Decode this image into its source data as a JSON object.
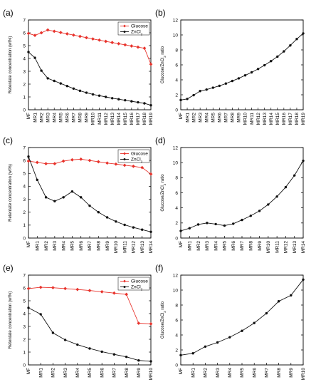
{
  "chart_data": [
    {
      "panel": "(a)",
      "type": "line",
      "ylabel": "Retentate concentration (wt%)",
      "xlabel": "",
      "categories": [
        "MF",
        "MR1",
        "MR2",
        "MR3",
        "MR4",
        "MR5",
        "MR6",
        "MR7",
        "MR8",
        "MR9",
        "MR10",
        "MR11",
        "MR12",
        "MR13",
        "MR14",
        "MR15",
        "MR16",
        "MR17",
        "MR18",
        "MR19"
      ],
      "ylim": [
        0,
        7
      ],
      "yticks": [
        0,
        1,
        2,
        3,
        4,
        5,
        6,
        7
      ],
      "legend": "top-right",
      "series": [
        {
          "name": "Glucose",
          "sub": "",
          "color": "#e8322b",
          "marker": "diamond",
          "values": [
            5.95,
            5.8,
            6.0,
            6.22,
            6.12,
            6.02,
            5.92,
            5.82,
            5.72,
            5.62,
            5.52,
            5.43,
            5.33,
            5.24,
            5.15,
            5.06,
            4.97,
            4.88,
            4.8,
            3.55
          ]
        },
        {
          "name": "ZnCl",
          "sub": "2",
          "color": "#111111",
          "marker": "circle",
          "values": [
            4.5,
            4.05,
            3.05,
            2.45,
            2.25,
            2.05,
            1.85,
            1.65,
            1.48,
            1.33,
            1.2,
            1.1,
            1.0,
            0.9,
            0.82,
            0.74,
            0.66,
            0.58,
            0.5,
            0.35
          ]
        }
      ]
    },
    {
      "panel": "(b)",
      "type": "line",
      "ylabel": "Glucose/ZnCl2 ratio",
      "categories": [
        "MF",
        "MR1",
        "MR2",
        "MR3",
        "MR4",
        "MR5",
        "MR6",
        "MR7",
        "MR8",
        "MR9",
        "MR10",
        "MR11",
        "MR12",
        "MR13",
        "MR14",
        "MR15",
        "MR16",
        "MR17",
        "MR18",
        "MR19"
      ],
      "ylim": [
        0,
        12
      ],
      "yticks": [
        0,
        2,
        4,
        6,
        8,
        10,
        12
      ],
      "series": [
        {
          "name": "",
          "color": "#111111",
          "marker": "circle",
          "values": [
            1.3,
            1.45,
            1.95,
            2.5,
            2.7,
            2.95,
            3.2,
            3.5,
            3.85,
            4.2,
            4.6,
            5.0,
            5.45,
            5.95,
            6.5,
            7.1,
            7.8,
            8.6,
            9.45,
            10.2
          ]
        }
      ]
    },
    {
      "panel": "(c)",
      "type": "line",
      "ylabel": "Retentate concentration (wt%)",
      "categories": [
        "MF",
        "MR1",
        "MR2",
        "MR3",
        "MR4",
        "MR5",
        "MR6",
        "MR7",
        "MR8",
        "MR9",
        "MR10",
        "MR11",
        "MR12",
        "MR13",
        "MR14"
      ],
      "ylim": [
        0,
        7
      ],
      "yticks": [
        0,
        1,
        2,
        3,
        4,
        5,
        6,
        7
      ],
      "legend": "top-right",
      "series": [
        {
          "name": "Glucose",
          "sub": "",
          "color": "#e8322b",
          "marker": "diamond",
          "values": [
            5.95,
            5.85,
            5.75,
            5.75,
            5.95,
            6.05,
            6.1,
            6.0,
            5.9,
            5.8,
            5.72,
            5.63,
            5.55,
            5.45,
            4.95
          ]
        },
        {
          "name": "ZnCl",
          "sub": "2",
          "color": "#111111",
          "marker": "circle",
          "values": [
            6.3,
            4.5,
            3.15,
            2.85,
            3.15,
            3.6,
            3.15,
            2.5,
            2.0,
            1.6,
            1.28,
            1.02,
            0.82,
            0.65,
            0.48
          ]
        }
      ]
    },
    {
      "panel": "(d)",
      "type": "line",
      "ylabel": "Glucose/ZnCl2 ratio",
      "categories": [
        "MF",
        "MR1",
        "MR2",
        "MR3",
        "MR4",
        "MR5",
        "MR6",
        "MR7",
        "MR8",
        "MR9",
        "MR10",
        "MR11",
        "MR12",
        "MR13",
        "MR14"
      ],
      "ylim": [
        0,
        12
      ],
      "yticks": [
        0,
        2,
        4,
        6,
        8,
        10,
        12
      ],
      "series": [
        {
          "name": "",
          "color": "#111111",
          "marker": "circle",
          "values": [
            0.95,
            1.3,
            1.8,
            2.0,
            1.85,
            1.65,
            1.9,
            2.4,
            2.95,
            3.6,
            4.45,
            5.5,
            6.75,
            8.3,
            10.25
          ]
        }
      ]
    },
    {
      "panel": "(e)",
      "type": "line",
      "ylabel": "Retentate concentration (wt%)",
      "categories": [
        "MF",
        "MR1",
        "MR2",
        "MR3",
        "MR4",
        "MR5",
        "MR6",
        "MR7",
        "MR8",
        "MR9",
        "MR10"
      ],
      "ylim": [
        0,
        7
      ],
      "yticks": [
        0,
        1,
        2,
        3,
        4,
        5,
        6,
        7
      ],
      "legend": "top-right",
      "series": [
        {
          "name": "Glucose",
          "sub": "",
          "color": "#e8322b",
          "marker": "diamond",
          "values": [
            5.95,
            6.05,
            6.02,
            5.95,
            5.88,
            5.8,
            5.7,
            5.6,
            5.5,
            3.25,
            3.2
          ]
        },
        {
          "name": "ZnCl",
          "sub": "2",
          "color": "#111111",
          "marker": "circle",
          "values": [
            4.45,
            3.95,
            2.5,
            1.95,
            1.58,
            1.28,
            1.03,
            0.82,
            0.63,
            0.35,
            0.28
          ]
        }
      ]
    },
    {
      "panel": "(f)",
      "type": "line",
      "ylabel": "Glucose/ZnCl2 ratio",
      "categories": [
        "MF",
        "MR1",
        "MR2",
        "MR3",
        "MR4",
        "MR5",
        "MR6",
        "MR7",
        "MR8",
        "MR9",
        "MR10"
      ],
      "ylim": [
        0,
        12
      ],
      "yticks": [
        0,
        2,
        4,
        6,
        8,
        10,
        12
      ],
      "series": [
        {
          "name": "",
          "color": "#111111",
          "marker": "circle",
          "values": [
            1.3,
            1.55,
            2.45,
            3.0,
            3.7,
            4.55,
            5.6,
            6.9,
            8.5,
            9.3,
            11.4
          ]
        }
      ]
    }
  ]
}
